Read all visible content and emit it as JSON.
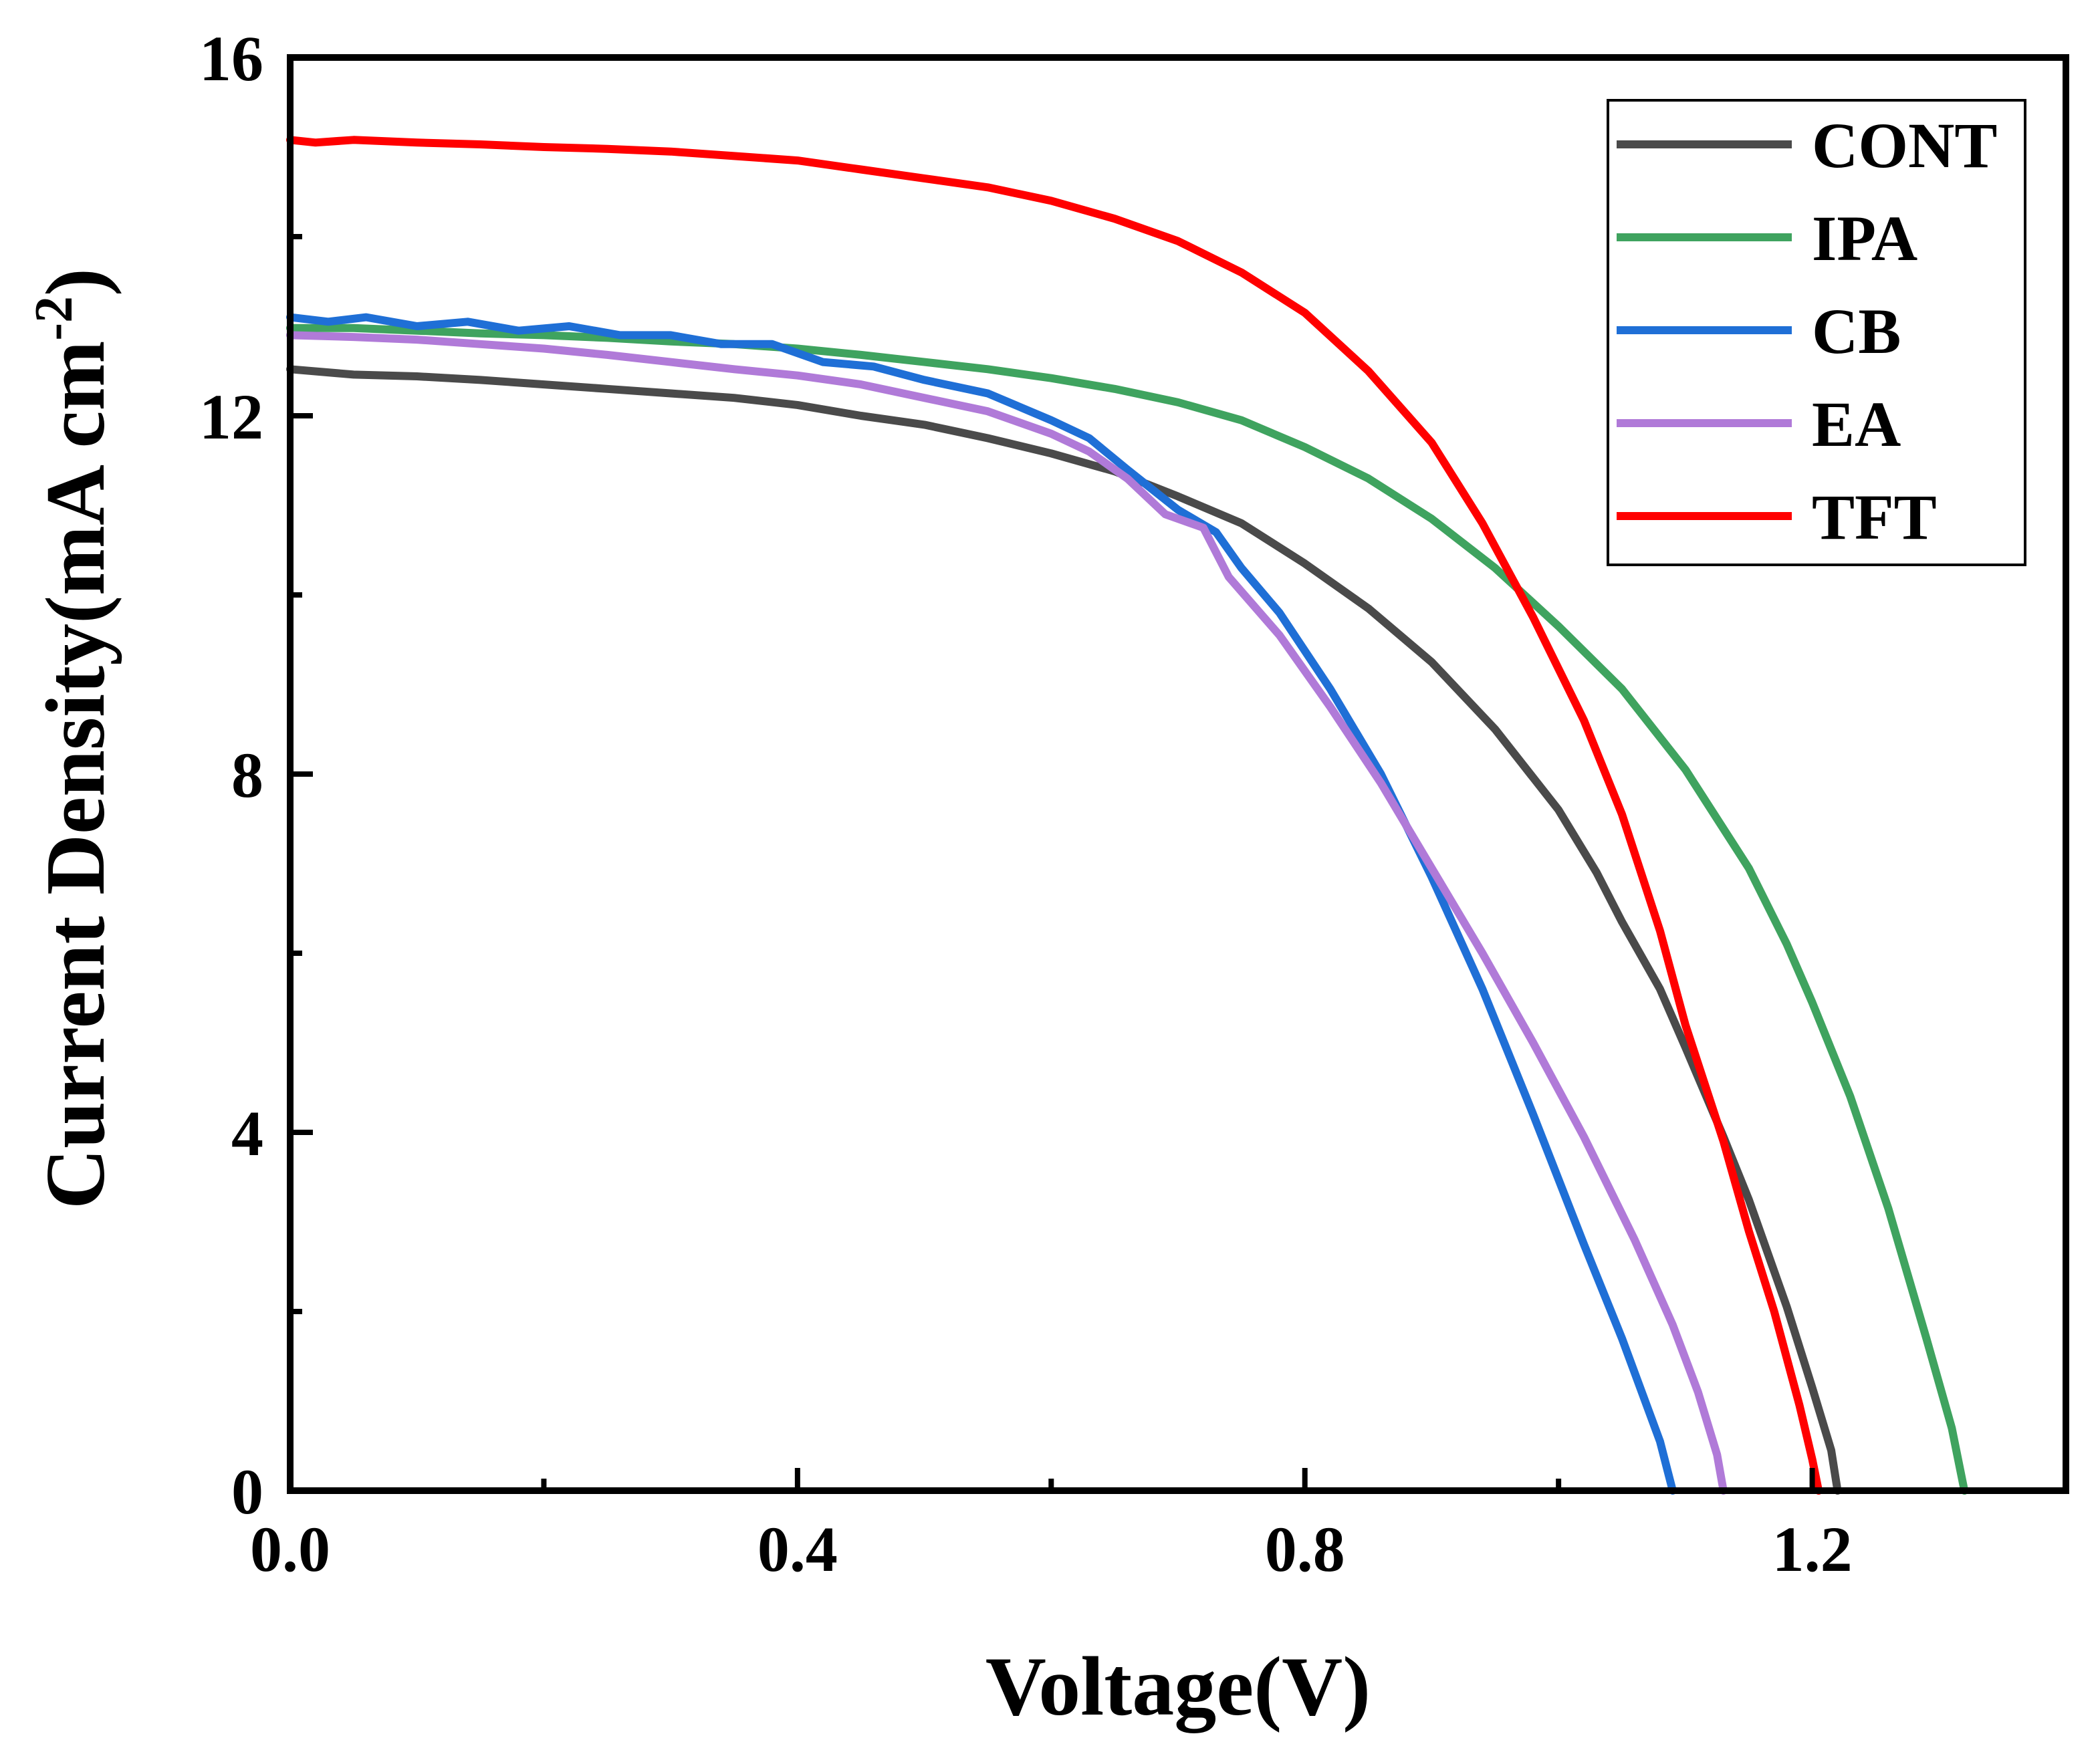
{
  "chart_data": {
    "type": "line",
    "title": "",
    "xlabel": "Voltage(V)",
    "ylabel_main": "Current Density(mA cm",
    "ylabel_sup": "-2",
    "ylabel_close": ")",
    "xlim": [
      0.0,
      1.4
    ],
    "ylim": [
      0,
      16
    ],
    "x_ticks": [
      {
        "value": 0.0,
        "label": "0.0"
      },
      {
        "value": 0.4,
        "label": "0.4"
      },
      {
        "value": 0.8,
        "label": "0.8"
      },
      {
        "value": 1.2,
        "label": "1.2"
      }
    ],
    "x_minor_ticks": [
      0.2,
      0.6,
      1.0
    ],
    "y_ticks": [
      {
        "value": 0,
        "label": "0"
      },
      {
        "value": 4,
        "label": "4"
      },
      {
        "value": 8,
        "label": "8"
      },
      {
        "value": 12,
        "label": "12"
      },
      {
        "value": 16,
        "label": "16"
      }
    ],
    "y_minor_ticks": [
      2,
      6,
      10,
      14
    ],
    "legend_position": "top-right",
    "series": [
      {
        "name": "CONT",
        "color": "#4a4a4a",
        "points": [
          [
            0.0,
            12.52
          ],
          [
            0.05,
            12.46
          ],
          [
            0.1,
            12.44
          ],
          [
            0.15,
            12.4
          ],
          [
            0.2,
            12.35
          ],
          [
            0.25,
            12.3
          ],
          [
            0.3,
            12.25
          ],
          [
            0.35,
            12.2
          ],
          [
            0.4,
            12.12
          ],
          [
            0.45,
            12.0
          ],
          [
            0.5,
            11.9
          ],
          [
            0.55,
            11.75
          ],
          [
            0.6,
            11.58
          ],
          [
            0.65,
            11.38
          ],
          [
            0.7,
            11.1
          ],
          [
            0.75,
            10.8
          ],
          [
            0.8,
            10.35
          ],
          [
            0.85,
            9.85
          ],
          [
            0.9,
            9.25
          ],
          [
            0.95,
            8.5
          ],
          [
            1.0,
            7.6
          ],
          [
            1.03,
            6.9
          ],
          [
            1.05,
            6.35
          ],
          [
            1.08,
            5.6
          ],
          [
            1.1,
            4.95
          ],
          [
            1.13,
            3.95
          ],
          [
            1.15,
            3.25
          ],
          [
            1.18,
            2.05
          ],
          [
            1.2,
            1.15
          ],
          [
            1.215,
            0.45
          ],
          [
            1.22,
            0.0
          ]
        ]
      },
      {
        "name": "IPA",
        "color": "#3fa35f",
        "points": [
          [
            0.0,
            12.98
          ],
          [
            0.05,
            12.98
          ],
          [
            0.1,
            12.95
          ],
          [
            0.15,
            12.92
          ],
          [
            0.2,
            12.9
          ],
          [
            0.25,
            12.87
          ],
          [
            0.3,
            12.83
          ],
          [
            0.35,
            12.8
          ],
          [
            0.4,
            12.75
          ],
          [
            0.45,
            12.68
          ],
          [
            0.5,
            12.6
          ],
          [
            0.55,
            12.52
          ],
          [
            0.6,
            12.42
          ],
          [
            0.65,
            12.3
          ],
          [
            0.7,
            12.15
          ],
          [
            0.75,
            11.95
          ],
          [
            0.8,
            11.65
          ],
          [
            0.85,
            11.3
          ],
          [
            0.9,
            10.85
          ],
          [
            0.95,
            10.3
          ],
          [
            1.0,
            9.65
          ],
          [
            1.05,
            8.95
          ],
          [
            1.1,
            8.05
          ],
          [
            1.15,
            6.95
          ],
          [
            1.18,
            6.1
          ],
          [
            1.2,
            5.45
          ],
          [
            1.23,
            4.4
          ],
          [
            1.26,
            3.15
          ],
          [
            1.29,
            1.7
          ],
          [
            1.31,
            0.7
          ],
          [
            1.32,
            0.0
          ]
        ]
      },
      {
        "name": "CB",
        "color": "#1f6fd6",
        "points": [
          [
            0.0,
            13.1
          ],
          [
            0.03,
            13.05
          ],
          [
            0.06,
            13.1
          ],
          [
            0.1,
            13.0
          ],
          [
            0.14,
            13.05
          ],
          [
            0.18,
            12.95
          ],
          [
            0.22,
            13.0
          ],
          [
            0.26,
            12.9
          ],
          [
            0.3,
            12.9
          ],
          [
            0.34,
            12.8
          ],
          [
            0.38,
            12.8
          ],
          [
            0.42,
            12.6
          ],
          [
            0.46,
            12.55
          ],
          [
            0.5,
            12.4
          ],
          [
            0.55,
            12.25
          ],
          [
            0.6,
            11.95
          ],
          [
            0.63,
            11.75
          ],
          [
            0.66,
            11.4
          ],
          [
            0.7,
            10.95
          ],
          [
            0.73,
            10.7
          ],
          [
            0.75,
            10.3
          ],
          [
            0.78,
            9.8
          ],
          [
            0.82,
            8.95
          ],
          [
            0.86,
            8.0
          ],
          [
            0.9,
            6.85
          ],
          [
            0.94,
            5.6
          ],
          [
            0.98,
            4.2
          ],
          [
            1.02,
            2.75
          ],
          [
            1.05,
            1.7
          ],
          [
            1.08,
            0.55
          ],
          [
            1.09,
            0.0
          ]
        ]
      },
      {
        "name": "EA",
        "color": "#b07ad8",
        "points": [
          [
            0.0,
            12.9
          ],
          [
            0.05,
            12.88
          ],
          [
            0.1,
            12.85
          ],
          [
            0.15,
            12.8
          ],
          [
            0.2,
            12.75
          ],
          [
            0.25,
            12.68
          ],
          [
            0.3,
            12.6
          ],
          [
            0.35,
            12.52
          ],
          [
            0.4,
            12.45
          ],
          [
            0.45,
            12.35
          ],
          [
            0.5,
            12.2
          ],
          [
            0.55,
            12.05
          ],
          [
            0.6,
            11.8
          ],
          [
            0.63,
            11.6
          ],
          [
            0.66,
            11.3
          ],
          [
            0.69,
            10.9
          ],
          [
            0.72,
            10.75
          ],
          [
            0.74,
            10.2
          ],
          [
            0.78,
            9.55
          ],
          [
            0.82,
            8.75
          ],
          [
            0.86,
            7.9
          ],
          [
            0.9,
            6.95
          ],
          [
            0.94,
            6.0
          ],
          [
            0.98,
            5.0
          ],
          [
            1.02,
            3.95
          ],
          [
            1.06,
            2.8
          ],
          [
            1.09,
            1.85
          ],
          [
            1.11,
            1.1
          ],
          [
            1.125,
            0.4
          ],
          [
            1.13,
            0.0
          ]
        ]
      },
      {
        "name": "TFT",
        "color": "#ff0000",
        "points": [
          [
            0.0,
            15.08
          ],
          [
            0.02,
            15.05
          ],
          [
            0.05,
            15.08
          ],
          [
            0.1,
            15.05
          ],
          [
            0.15,
            15.03
          ],
          [
            0.2,
            15.0
          ],
          [
            0.25,
            14.98
          ],
          [
            0.3,
            14.95
          ],
          [
            0.35,
            14.9
          ],
          [
            0.4,
            14.85
          ],
          [
            0.45,
            14.75
          ],
          [
            0.5,
            14.65
          ],
          [
            0.55,
            14.55
          ],
          [
            0.6,
            14.4
          ],
          [
            0.65,
            14.2
          ],
          [
            0.7,
            13.95
          ],
          [
            0.75,
            13.6
          ],
          [
            0.8,
            13.15
          ],
          [
            0.85,
            12.5
          ],
          [
            0.9,
            11.7
          ],
          [
            0.94,
            10.8
          ],
          [
            0.98,
            9.75
          ],
          [
            1.02,
            8.6
          ],
          [
            1.05,
            7.55
          ],
          [
            1.08,
            6.25
          ],
          [
            1.1,
            5.2
          ],
          [
            1.13,
            3.9
          ],
          [
            1.15,
            2.9
          ],
          [
            1.17,
            2.0
          ],
          [
            1.19,
            0.95
          ],
          [
            1.2,
            0.35
          ],
          [
            1.205,
            0.0
          ]
        ]
      }
    ]
  }
}
